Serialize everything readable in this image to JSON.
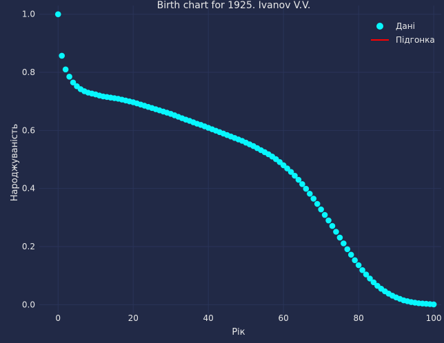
{
  "colors": {
    "background": "#212946",
    "grid": "#2A3459",
    "data_series": "#08F7FE",
    "fit_series": "#FF0000",
    "text": "#E8E8E8"
  },
  "chart_data": {
    "type": "scatter",
    "title": "Birth chart for 1925. Ivanov V.V.",
    "xlabel": "Рік",
    "ylabel": "Народжуваність",
    "xlim": [
      -5,
      102
    ],
    "ylim": [
      -0.03,
      1.03
    ],
    "xticks": [
      "0",
      "20",
      "40",
      "60",
      "80",
      "100"
    ],
    "yticks": [
      "0.0",
      "0.2",
      "0.4",
      "0.6",
      "0.8",
      "1.0"
    ],
    "grid": true,
    "legend_position": "top-right",
    "series": [
      {
        "name": "Дані",
        "kind": "scatter",
        "x": [
          0,
          1,
          2,
          3,
          4,
          5,
          6,
          7,
          8,
          9,
          10,
          11,
          12,
          13,
          14,
          15,
          16,
          17,
          18,
          19,
          20,
          21,
          22,
          23,
          24,
          25,
          26,
          27,
          28,
          29,
          30,
          31,
          32,
          33,
          34,
          35,
          36,
          37,
          38,
          39,
          40,
          41,
          42,
          43,
          44,
          45,
          46,
          47,
          48,
          49,
          50,
          51,
          52,
          53,
          54,
          55,
          56,
          57,
          58,
          59,
          60,
          61,
          62,
          63,
          64,
          65,
          66,
          67,
          68,
          69,
          70,
          71,
          72,
          73,
          74,
          75,
          76,
          77,
          78,
          79,
          80,
          81,
          82,
          83,
          84,
          85,
          86,
          87,
          88,
          89,
          90,
          91,
          92,
          93,
          94,
          95,
          96,
          97,
          98,
          99,
          100
        ],
        "y": [
          1.0,
          0.857,
          0.81,
          0.785,
          0.765,
          0.752,
          0.742,
          0.735,
          0.73,
          0.727,
          0.724,
          0.72,
          0.717,
          0.715,
          0.713,
          0.711,
          0.709,
          0.706,
          0.703,
          0.7,
          0.697,
          0.693,
          0.689,
          0.685,
          0.681,
          0.677,
          0.673,
          0.669,
          0.665,
          0.661,
          0.657,
          0.652,
          0.647,
          0.642,
          0.637,
          0.633,
          0.628,
          0.623,
          0.619,
          0.614,
          0.609,
          0.604,
          0.599,
          0.594,
          0.589,
          0.584,
          0.579,
          0.574,
          0.569,
          0.564,
          0.558,
          0.552,
          0.546,
          0.539,
          0.532,
          0.525,
          0.518,
          0.51,
          0.501,
          0.491,
          0.48,
          0.469,
          0.457,
          0.444,
          0.43,
          0.415,
          0.399,
          0.382,
          0.365,
          0.347,
          0.328,
          0.309,
          0.29,
          0.271,
          0.251,
          0.231,
          0.211,
          0.191,
          0.172,
          0.153,
          0.136,
          0.119,
          0.104,
          0.09,
          0.077,
          0.065,
          0.055,
          0.046,
          0.038,
          0.031,
          0.025,
          0.02,
          0.015,
          0.012,
          0.009,
          0.007,
          0.005,
          0.004,
          0.003,
          0.002,
          0.001
        ]
      },
      {
        "name": "Підгонка",
        "kind": "line",
        "x": [],
        "y": []
      }
    ]
  }
}
